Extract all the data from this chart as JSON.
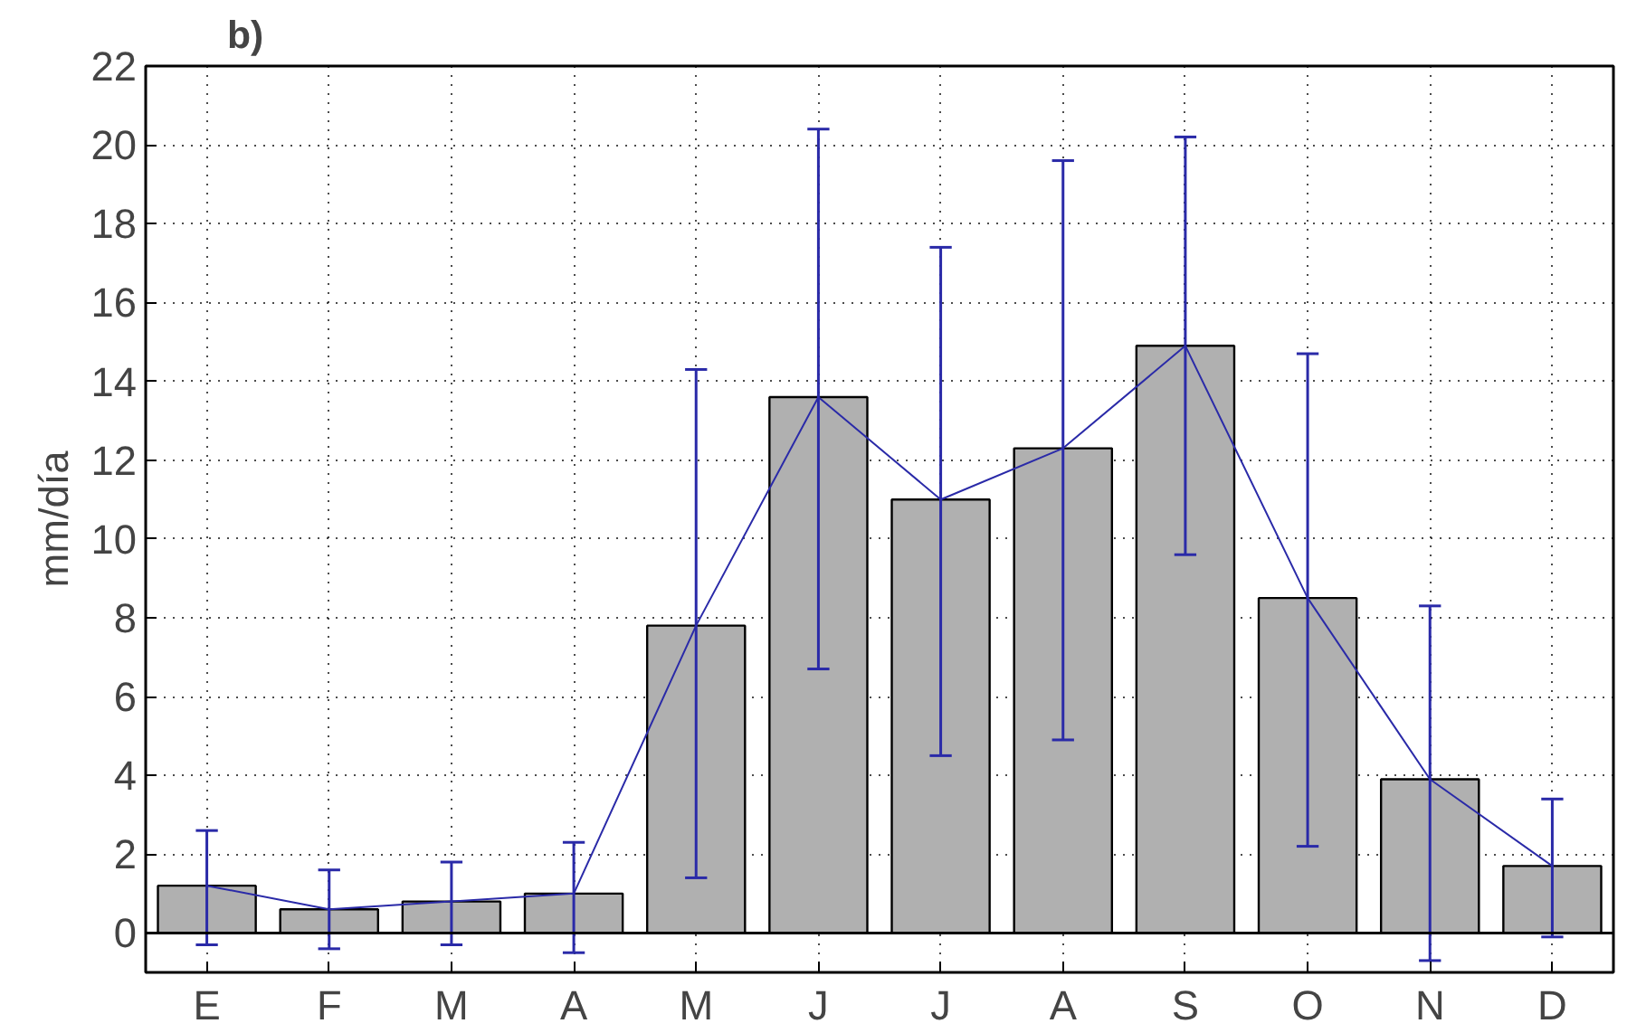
{
  "chart_data": {
    "type": "bar",
    "title": "b)",
    "ylabel": "mm/día",
    "categories": [
      "E",
      "F",
      "M",
      "A",
      "M",
      "J",
      "J",
      "A",
      "S",
      "O",
      "N",
      "D"
    ],
    "series": [
      {
        "color": "#b0b0b0",
        "values": [
          1.2,
          0.6,
          0.8,
          1.0,
          7.8,
          13.6,
          11.0,
          12.3,
          14.9,
          8.5,
          3.9,
          1.7
        ]
      },
      {
        "type": "line",
        "color": "#2a2aa8",
        "values": [
          1.2,
          0.6,
          0.8,
          1.0,
          7.8,
          13.6,
          11.0,
          12.3,
          14.9,
          8.5,
          3.9,
          1.7
        ],
        "errors": [
          [
            -0.3,
            2.6
          ],
          [
            -0.4,
            1.6
          ],
          [
            -0.3,
            1.8
          ],
          [
            -0.5,
            2.3
          ],
          [
            1.4,
            14.3
          ],
          [
            6.7,
            20.4
          ],
          [
            4.5,
            17.4
          ],
          [
            4.9,
            19.6
          ],
          [
            9.6,
            20.2
          ],
          [
            2.2,
            14.7
          ],
          [
            -0.7,
            8.3
          ],
          [
            -0.1,
            3.4
          ]
        ]
      }
    ],
    "ylim": [
      -1,
      22
    ],
    "yticks": [
      0,
      2,
      4,
      6,
      8,
      10,
      12,
      14,
      16,
      18,
      20,
      22
    ],
    "ref_lines": [
      {
        "axis": "y",
        "value": 0,
        "color": "#000000"
      }
    ],
    "grid": true
  }
}
